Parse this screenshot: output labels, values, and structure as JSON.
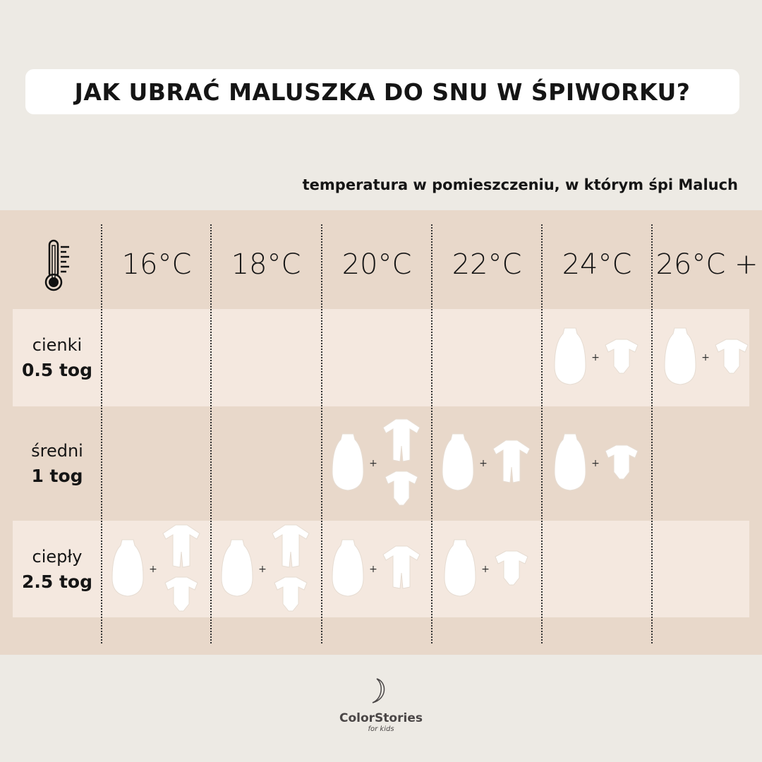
{
  "title": "JAK UBRAĆ MALUSZKA DO SNU W ŚPIWORKU?",
  "subtitle": "temperatura w pomieszczeniu, w którym śpi Maluch",
  "colors": {
    "background": "#edeae4",
    "band": "#e8d8ca",
    "row_highlight": "#f4e8df",
    "title_box": "#ffffff",
    "text": "#151515"
  },
  "header_icon": "thermometer-icon",
  "temperatures": [
    "16°C",
    "18°C",
    "20°C",
    "22°C",
    "24°C",
    "26°C +"
  ],
  "rows": [
    {
      "name": "cienki",
      "tog": "0.5 tog",
      "cells": [
        [],
        [],
        [],
        [],
        [
          "sleeping-bag",
          "bodysuit"
        ],
        [
          "sleeping-bag",
          "bodysuit"
        ]
      ]
    },
    {
      "name": "średni",
      "tog": "1 tog",
      "cells": [
        [],
        [],
        [
          "sleeping-bag",
          "romper",
          "bodysuit"
        ],
        [
          "sleeping-bag",
          "romper"
        ],
        [
          "sleeping-bag",
          "bodysuit"
        ],
        []
      ]
    },
    {
      "name": "ciepły",
      "tog": "2.5 tog",
      "cells": [
        [
          "sleeping-bag",
          "romper",
          "bodysuit"
        ],
        [
          "sleeping-bag",
          "romper",
          "bodysuit"
        ],
        [
          "sleeping-bag",
          "romper"
        ],
        [
          "sleeping-bag",
          "bodysuit"
        ],
        [],
        []
      ]
    }
  ],
  "plus_sign": "+",
  "logo": {
    "brand": "ColorStories",
    "sub": "for kids",
    "icon": "moon-icon"
  }
}
